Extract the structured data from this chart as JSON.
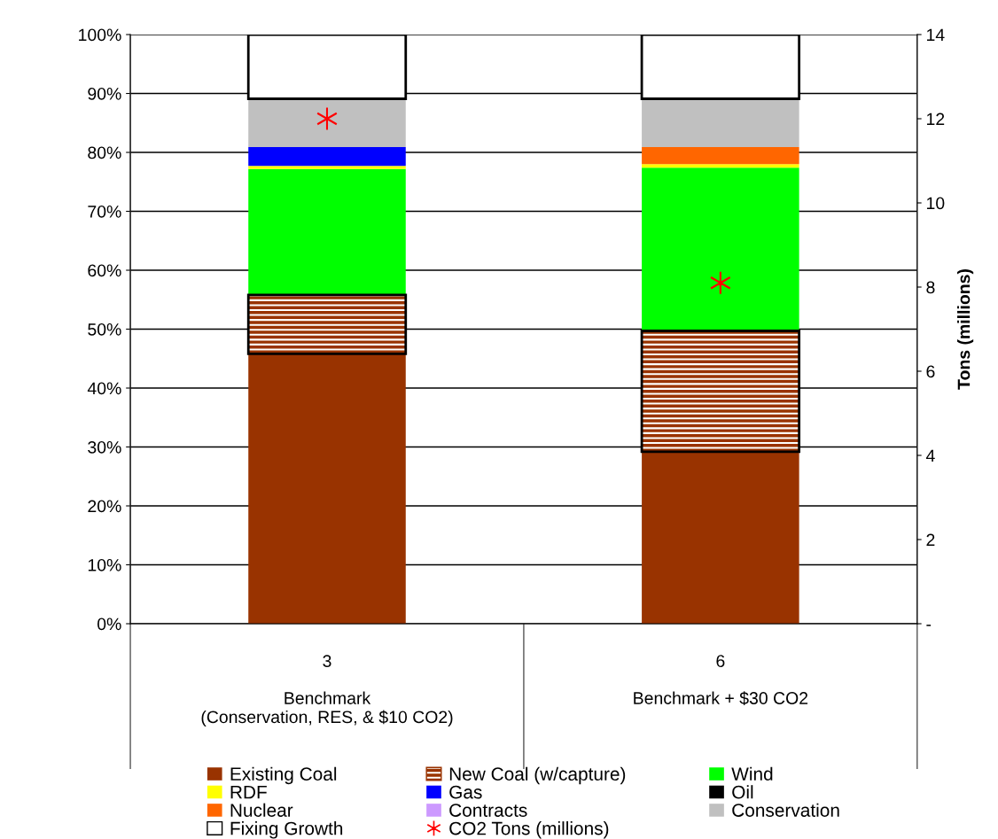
{
  "chart_data": {
    "type": "bar",
    "stacked": true,
    "categories": [
      "3\n\nBenchmark\n(Conservation, RES, & $10 CO2)",
      "6\n\nBenchmark + $30 CO2"
    ],
    "series": [
      {
        "name": "Existing Coal",
        "color": "#993300",
        "values": [
          45.8,
          29.2
        ]
      },
      {
        "name": "New Coal (w/capture)",
        "color": "#993300",
        "values": [
          10.0,
          20.5
        ]
      },
      {
        "name": "Wind",
        "color": "#00ff00",
        "values": [
          21.4,
          27.7
        ]
      },
      {
        "name": "RDF",
        "color": "#ffff00",
        "values": [
          0.5,
          0.6
        ]
      },
      {
        "name": "Gas",
        "color": "#0000ff",
        "values": [
          3.2,
          0
        ]
      },
      {
        "name": "Oil",
        "color": "#000000",
        "values": [
          0,
          0
        ]
      },
      {
        "name": "Nuclear",
        "color": "#ff6600",
        "values": [
          0,
          2.9
        ]
      },
      {
        "name": "Contracts",
        "color": "#cc99ff",
        "values": [
          0,
          0
        ]
      },
      {
        "name": "Conservation",
        "color": "#c0c0c0",
        "values": [
          8.2,
          8.2
        ]
      },
      {
        "name": "Fixing Growth",
        "color": "#ffffff",
        "values": [
          10.9,
          10.9
        ]
      },
      {
        "name": "CO2 Tons (millions)",
        "type": "scatter",
        "axis": "y2",
        "marker": "cross",
        "color": "#ff0000",
        "values": [
          12.0,
          8.1
        ]
      }
    ],
    "ylim": [
      0,
      100
    ],
    "yticks": [
      {
        "value": 0,
        "label": "0%"
      },
      {
        "value": 10,
        "label": "10%"
      },
      {
        "value": 20,
        "label": "20%"
      },
      {
        "value": 30,
        "label": "30%"
      },
      {
        "value": 40,
        "label": "40%"
      },
      {
        "value": 50,
        "label": "50%"
      },
      {
        "value": 60,
        "label": "60%"
      },
      {
        "value": 70,
        "label": "70%"
      },
      {
        "value": 80,
        "label": "80%"
      },
      {
        "value": 90,
        "label": "90%"
      },
      {
        "value": 100,
        "label": "100%"
      }
    ],
    "y2lim": [
      0,
      14
    ],
    "y2ticks": [
      {
        "value": 0,
        "label": "-"
      },
      2,
      4,
      6,
      8,
      10,
      12,
      14
    ],
    "y2label": "Tons (millions)",
    "grid": "y",
    "legend": "bottom"
  }
}
